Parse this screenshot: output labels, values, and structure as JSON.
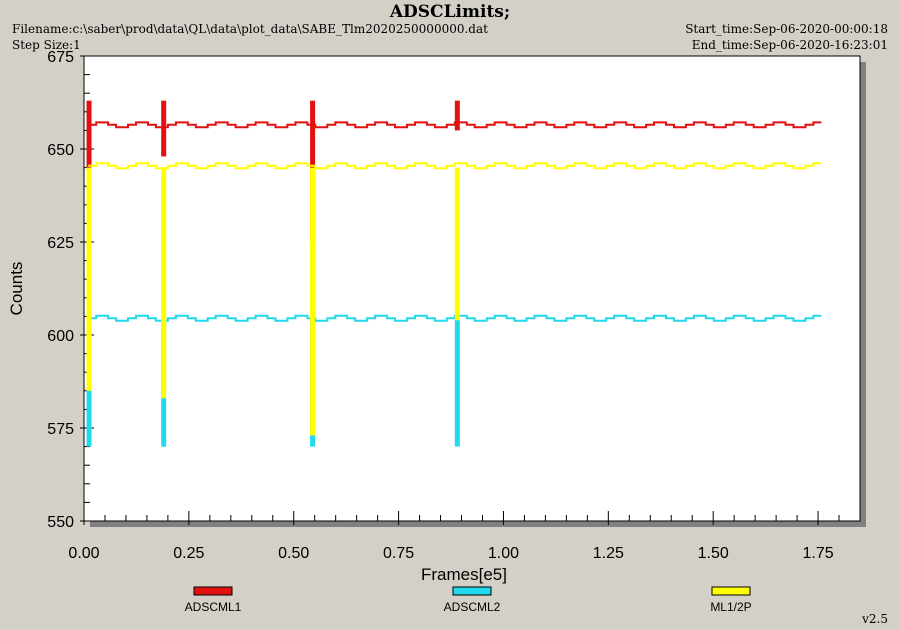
{
  "header": {
    "title": "ADSCLimits;",
    "filename": "Filename:c:\\saber\\prod\\data\\QL\\data\\plot_data\\SABE_Tlm2020250000000.dat",
    "step_size": "Step Size:1",
    "start_time": "Start_time:Sep-06-2020-00:00:18",
    "end_time": "End_time:Sep-06-2020-16:23:01"
  },
  "version": "v2.5",
  "chart_data": {
    "type": "line",
    "xlabel": "Frames[e5]",
    "ylabel": "Counts",
    "xlim": [
      0.0,
      1.85
    ],
    "ylim": [
      550,
      675
    ],
    "x_ticks": [
      "0.00",
      "0.25",
      "0.50",
      "0.75",
      "1.00",
      "1.25",
      "1.50",
      "1.75"
    ],
    "y_ticks": [
      "550",
      "575",
      "600",
      "625",
      "650",
      "675"
    ],
    "grid": false,
    "legend_position": "bottom",
    "colors": {
      "ADSCML1": "#e31010",
      "ADSCML2": "#22d8ec",
      "ML1/2P": "#ffff00"
    },
    "series": [
      {
        "name": "ADSCML1",
        "baseline": 656.5,
        "ripple": 1.3,
        "x_end": 1.765,
        "spikes": [
          {
            "x": 0.012,
            "low": 645,
            "high": 663
          },
          {
            "x": 0.19,
            "low": 648,
            "high": 663
          },
          {
            "x": 0.545,
            "low": 625,
            "high": 663
          },
          {
            "x": 0.89,
            "low": 655,
            "high": 663
          }
        ]
      },
      {
        "name": "ADSCML2",
        "baseline": 604.5,
        "ripple": 1.3,
        "x_end": 1.765,
        "spikes": [
          {
            "x": 0.012,
            "low": 570,
            "high": 604
          },
          {
            "x": 0.19,
            "low": 570,
            "high": 604
          },
          {
            "x": 0.545,
            "low": 570,
            "high": 604
          },
          {
            "x": 0.89,
            "low": 570,
            "high": 604
          }
        ]
      },
      {
        "name": "ML1/2P",
        "baseline": 645.5,
        "ripple": 1.3,
        "x_end": 1.765,
        "spikes": [
          {
            "x": 0.012,
            "low": 585,
            "high": 645
          },
          {
            "x": 0.19,
            "low": 583,
            "high": 645
          },
          {
            "x": 0.545,
            "low": 573,
            "high": 645
          },
          {
            "x": 0.89,
            "low": 604,
            "high": 645
          }
        ]
      }
    ]
  }
}
